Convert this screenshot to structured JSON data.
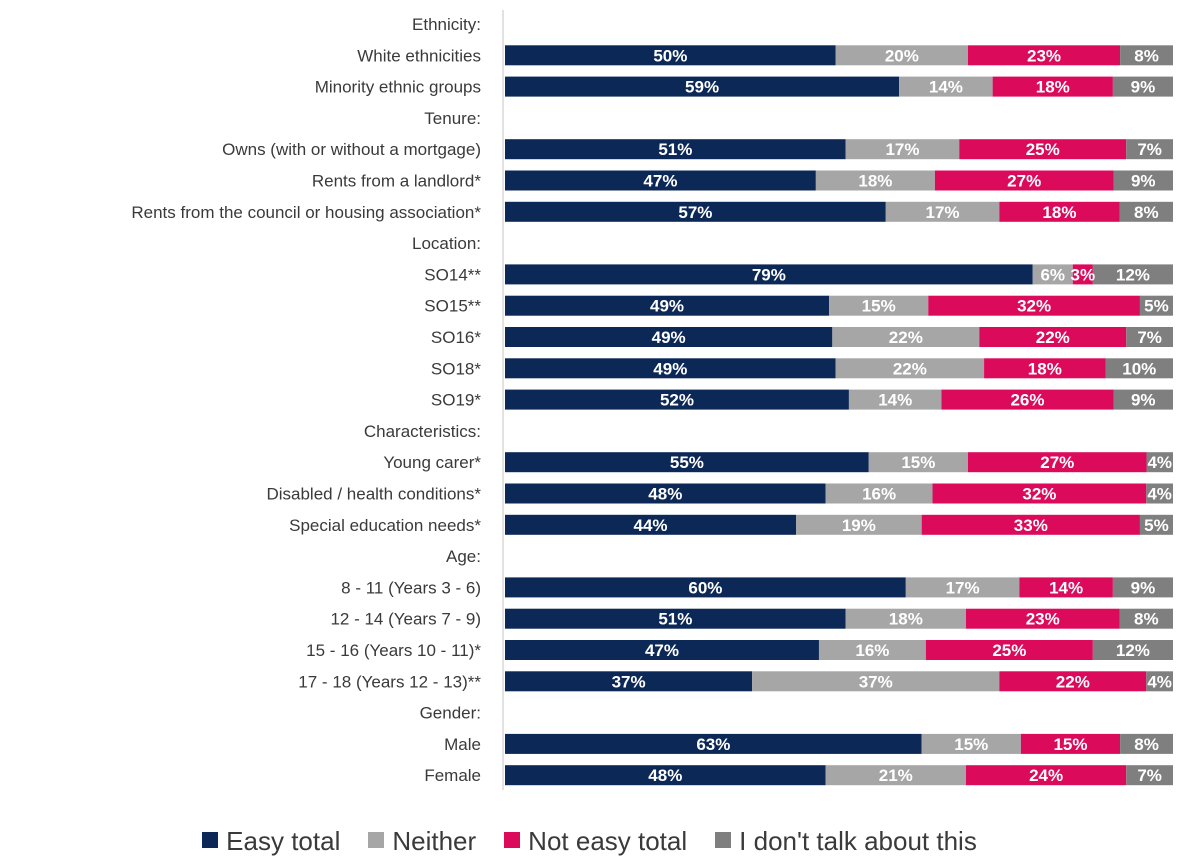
{
  "chart_data": {
    "type": "bar",
    "orientation": "horizontal",
    "stacked": true,
    "categories": [
      "Ethnicity:",
      "White ethnicities",
      "Minority ethnic groups",
      "Tenure:",
      "Owns (with or without a mortgage)",
      "Rents from a landlord*",
      "Rents from the council or housing association*",
      "Location:",
      "SO14**",
      "SO15**",
      "SO16*",
      "SO18*",
      "SO19*",
      "Characteristics:",
      "Young carer*",
      "Disabled / health conditions*",
      "Special education needs*",
      "Age:",
      "8 - 11 (Years 3 - 6)",
      "12 - 14 (Years 7 - 9)",
      "15 - 16 (Years 10 - 11)*",
      "17 - 18 (Years 12 - 13)**",
      "Gender:",
      "Male",
      "Female"
    ],
    "series": [
      {
        "name": "Easy total",
        "color": "#0c2857",
        "values": [
          null,
          50,
          59,
          null,
          51,
          47,
          57,
          null,
          79,
          49,
          49,
          49,
          52,
          null,
          55,
          48,
          44,
          null,
          60,
          51,
          47,
          37,
          null,
          63,
          48
        ]
      },
      {
        "name": "Neither",
        "color": "#a6a6a6",
        "values": [
          null,
          20,
          14,
          null,
          17,
          18,
          17,
          null,
          6,
          15,
          22,
          22,
          14,
          null,
          15,
          16,
          19,
          null,
          17,
          18,
          16,
          37,
          null,
          15,
          21
        ]
      },
      {
        "name": "Not easy total",
        "color": "#db0a5b",
        "values": [
          null,
          23,
          18,
          null,
          25,
          27,
          18,
          null,
          3,
          32,
          22,
          18,
          26,
          null,
          27,
          32,
          33,
          null,
          14,
          23,
          25,
          22,
          null,
          15,
          24
        ]
      },
      {
        "name": "I don't talk about this",
        "color": "#7f7f7f",
        "values": [
          null,
          8,
          9,
          null,
          7,
          9,
          8,
          null,
          12,
          5,
          7,
          10,
          9,
          null,
          4,
          4,
          5,
          null,
          9,
          8,
          12,
          4,
          null,
          8,
          7
        ]
      }
    ],
    "value_format": "percent",
    "legend_position": "bottom",
    "grid": false
  }
}
